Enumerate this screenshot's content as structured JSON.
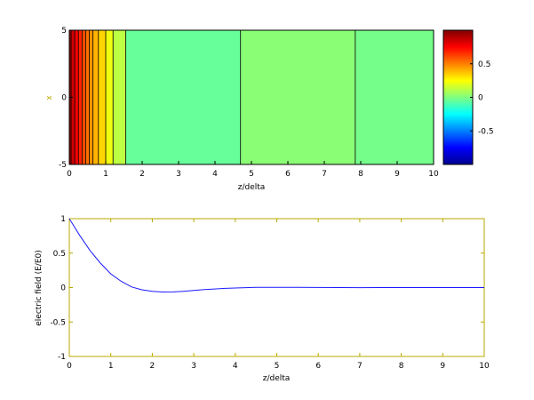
{
  "chart_data": [
    {
      "type": "heatmap",
      "title": "",
      "xlabel": "z/delta",
      "ylabel": "x",
      "xlim": [
        0,
        10
      ],
      "ylim": [
        -5,
        5
      ],
      "x_ticks": [
        "0",
        "1",
        "2",
        "3",
        "4",
        "5",
        "6",
        "7",
        "8",
        "9",
        "10"
      ],
      "y_ticks": [
        "-5",
        "0",
        "5"
      ],
      "colormap": "jet",
      "clim": [
        -1,
        1
      ],
      "colorbar_ticks": [
        "0.5",
        "0",
        "-0.5"
      ],
      "colorbar_tick_values": [
        0.5,
        0,
        -0.5
      ],
      "contour_boundaries_z": [
        0.05,
        0.15,
        0.25,
        0.35,
        0.45,
        0.55,
        0.65,
        0.8,
        1.0,
        1.2,
        1.55,
        4.7,
        7.85
      ],
      "band_values": [
        0.95,
        0.85,
        0.75,
        0.68,
        0.6,
        0.53,
        0.46,
        0.4,
        0.33,
        0.22,
        0.12,
        -0.05,
        0.02,
        -0.02
      ]
    },
    {
      "type": "line",
      "title": "",
      "xlabel": "z/delta",
      "ylabel": "electric field (E/E0)",
      "xlim": [
        0,
        10
      ],
      "ylim": [
        -1,
        1
      ],
      "x_ticks": [
        "0",
        "1",
        "2",
        "3",
        "4",
        "5",
        "6",
        "7",
        "8",
        "9",
        "10"
      ],
      "y_ticks": [
        "1",
        "0.5",
        "0",
        "-0.5",
        "-1"
      ],
      "series": [
        {
          "name": "",
          "color": "#1a1aff",
          "x": [
            0,
            0.25,
            0.5,
            0.75,
            1.0,
            1.25,
            1.5,
            1.75,
            2.0,
            2.25,
            2.5,
            2.75,
            3.0,
            3.25,
            3.5,
            3.75,
            4.0,
            4.5,
            5.0,
            5.5,
            6.0,
            6.5,
            7.0,
            7.5,
            8.0,
            8.5,
            9.0,
            9.5,
            10.0
          ],
          "y": [
            1.0,
            0.757,
            0.538,
            0.355,
            0.199,
            0.09,
            0.009,
            -0.032,
            -0.056,
            -0.065,
            -0.063,
            -0.054,
            -0.042,
            -0.03,
            -0.02,
            -0.012,
            -0.006,
            0.002,
            0.004,
            0.003,
            0.0015,
            0.0003,
            -0.0007,
            -0.0006,
            -0.0001,
            0.0001,
            0.0001,
            0.0,
            0.0
          ]
        }
      ]
    }
  ]
}
